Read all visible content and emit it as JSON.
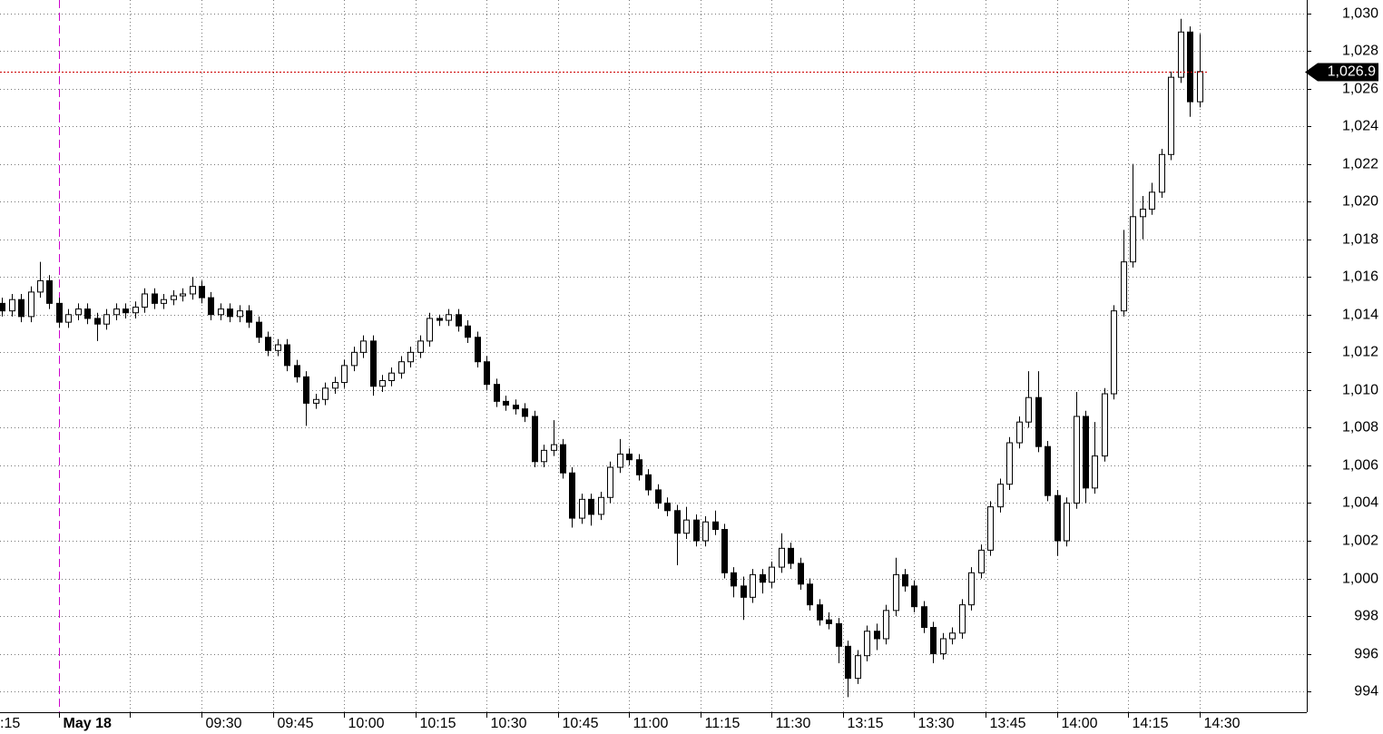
{
  "chart_data": {
    "type": "candlestick",
    "up_color": "#ffffff",
    "down_color": "#000000",
    "xlim": [
      -0.2,
      137.3
    ],
    "ylim": [
      992.9,
      1030.7
    ],
    "grid": true,
    "xticks": [
      {
        "value": -1.5,
        "label": ":15"
      },
      {
        "value": 6,
        "label": "May 18",
        "color": "#cc00cc",
        "bold": true
      },
      {
        "value": 13.5,
        "label": null
      },
      {
        "value": 21,
        "label": "09:30"
      },
      {
        "value": 28.5,
        "label": "09:45"
      },
      {
        "value": 36,
        "label": "10:00"
      },
      {
        "value": 43.5,
        "label": "10:15"
      },
      {
        "value": 51,
        "label": "10:30"
      },
      {
        "value": 58.5,
        "label": "10:45"
      },
      {
        "value": 66,
        "label": "11:00"
      },
      {
        "value": 73.5,
        "label": "11:15"
      },
      {
        "value": 81,
        "label": "11:30"
      },
      {
        "value": 88.5,
        "label": "13:15"
      },
      {
        "value": 96,
        "label": "13:30"
      },
      {
        "value": 103.5,
        "label": "13:45"
      },
      {
        "value": 111,
        "label": "14:00"
      },
      {
        "value": 118.5,
        "label": "14:15"
      },
      {
        "value": 126,
        "label": "14:30"
      }
    ],
    "yticks": [
      994,
      996,
      998,
      {
        "value": 1000,
        "label": "1,000"
      },
      {
        "value": 1002,
        "label": "1,002"
      },
      {
        "value": 1004,
        "label": "1,004"
      },
      {
        "value": 1006,
        "label": "1,006"
      },
      {
        "value": 1008,
        "label": "1,008"
      },
      {
        "value": 1010,
        "label": "1,010"
      },
      {
        "value": 1012,
        "label": "1,012"
      },
      {
        "value": 1014,
        "label": "1,014"
      },
      {
        "value": 1016,
        "label": "1,016"
      },
      {
        "value": 1018,
        "label": "1,018"
      },
      {
        "value": 1020,
        "label": "1,020"
      },
      {
        "value": 1022,
        "label": "1,022"
      },
      {
        "value": 1024,
        "label": "1,024"
      },
      {
        "value": 1026,
        "label": "1,026"
      },
      {
        "value": 1028,
        "label": "1,028"
      },
      {
        "value": 1030,
        "label": "1,030"
      }
    ],
    "last": {
      "value": 1026.9,
      "label": "1,026.9",
      "color": "#cc0000"
    },
    "open": [
      1014.6,
      1014.2,
      1014.8,
      1013.9,
      1015.2,
      1015.8,
      1014.6,
      1013.6,
      1014.0,
      1014.3,
      1013.8,
      1013.5,
      1014.0,
      1014.3,
      1014.1,
      1014.4,
      1015.1,
      1014.6,
      1014.8,
      1015.0,
      1015.1,
      1015.5,
      1014.9,
      1014.0,
      1014.3,
      1013.9,
      1014.2,
      1013.6,
      1012.8,
      1012.1,
      1012.4,
      1011.3,
      1010.7,
      1009.3,
      1009.5,
      1010.1,
      1010.4,
      1011.3,
      1012.0,
      1012.6,
      1010.2,
      1010.5,
      1010.9,
      1011.5,
      1012.0,
      1012.6,
      1013.8,
      1013.7,
      1014.0,
      1013.4,
      1012.8,
      1011.5,
      1010.3,
      1009.4,
      1009.2,
      1009.0,
      1008.6,
      1006.2,
      1006.8,
      1007.1,
      1005.6,
      1003.2,
      1004.2,
      1003.4,
      1004.3,
      1005.9,
      1006.6,
      1006.3,
      1005.5,
      1004.7,
      1004.0,
      1003.6,
      1002.4,
      1003.1,
      1002.0,
      1003.0,
      1002.6,
      1000.3,
      999.6,
      999.0,
      1000.2,
      999.8,
      1000.6,
      1001.6,
      1000.8,
      999.7,
      998.6,
      997.8,
      997.6,
      996.4,
      994.7,
      995.9,
      997.2,
      996.8,
      998.3,
      1000.2,
      999.6,
      998.5,
      997.4,
      996.0,
      996.8,
      997.1,
      998.6,
      1000.3,
      1001.5,
      1003.8,
      1005.0,
      1007.2,
      1008.3,
      1009.6,
      1007.0,
      1004.4,
      1002.0,
      1004.0,
      1008.6,
      1004.8,
      1006.5,
      1009.8,
      1014.2,
      1016.8,
      1019.2,
      1019.6,
      1020.5,
      1022.5,
      1026.6,
      1029.0,
      1025.3
    ],
    "high": [
      1014.9,
      1015.1,
      1015.1,
      1015.5,
      1016.8,
      1016.1,
      1014.9,
      1014.3,
      1014.6,
      1014.6,
      1014.1,
      1014.3,
      1014.6,
      1014.6,
      1014.7,
      1015.4,
      1015.4,
      1015.1,
      1015.3,
      1015.4,
      1016.0,
      1015.8,
      1015.2,
      1014.6,
      1014.6,
      1014.5,
      1014.5,
      1013.9,
      1013.1,
      1012.7,
      1012.7,
      1011.6,
      1011.0,
      1009.8,
      1010.4,
      1010.7,
      1011.6,
      1012.3,
      1012.9,
      1012.9,
      1010.8,
      1011.2,
      1011.8,
      1012.3,
      1012.9,
      1014.1,
      1014.0,
      1014.3,
      1014.3,
      1013.7,
      1013.1,
      1011.8,
      1010.6,
      1009.7,
      1009.5,
      1009.3,
      1008.9,
      1007.1,
      1008.4,
      1007.4,
      1005.9,
      1004.5,
      1004.5,
      1004.6,
      1006.2,
      1007.4,
      1006.9,
      1006.6,
      1005.8,
      1005.0,
      1004.3,
      1003.9,
      1003.8,
      1003.4,
      1003.3,
      1003.6,
      1002.9,
      1000.6,
      1000.1,
      1000.5,
      1000.5,
      1000.9,
      1002.4,
      1001.9,
      1001.1,
      1000.0,
      998.9,
      998.2,
      997.9,
      996.7,
      996.2,
      997.5,
      997.6,
      998.6,
      1001.1,
      1000.5,
      999.9,
      998.8,
      997.7,
      997.1,
      997.4,
      998.9,
      1000.6,
      1001.8,
      1004.1,
      1005.3,
      1007.5,
      1008.6,
      1011.0,
      1011.0,
      1007.3,
      1004.7,
      1004.3,
      1009.9,
      1008.9,
      1008.3,
      1010.1,
      1014.5,
      1018.5,
      1022.0,
      1020.3,
      1021.0,
      1022.8,
      1026.9,
      1029.7,
      1029.3,
      1028.9
    ],
    "low": [
      1013.9,
      1013.9,
      1013.6,
      1013.6,
      1014.9,
      1014.3,
      1013.3,
      1013.3,
      1013.7,
      1013.5,
      1012.6,
      1013.2,
      1013.7,
      1013.8,
      1013.8,
      1014.1,
      1014.3,
      1014.3,
      1014.5,
      1014.7,
      1014.8,
      1014.6,
      1013.7,
      1013.7,
      1013.6,
      1013.6,
      1013.3,
      1012.5,
      1011.8,
      1011.8,
      1011.0,
      1010.4,
      1008.1,
      1009.0,
      1009.2,
      1009.8,
      1010.1,
      1011.0,
      1011.7,
      1009.7,
      1009.9,
      1010.2,
      1010.6,
      1011.2,
      1011.7,
      1012.3,
      1013.4,
      1013.4,
      1013.1,
      1012.5,
      1011.2,
      1010.0,
      1009.1,
      1008.9,
      1008.7,
      1008.3,
      1005.9,
      1005.9,
      1006.5,
      1005.3,
      1002.7,
      1002.9,
      1002.8,
      1003.1,
      1004.0,
      1005.6,
      1006.0,
      1005.2,
      1004.4,
      1003.7,
      1003.3,
      1000.7,
      1002.1,
      1001.7,
      1001.7,
      1002.3,
      1000.0,
      999.0,
      997.8,
      998.7,
      999.2,
      999.5,
      1000.3,
      1000.5,
      999.4,
      998.3,
      997.5,
      997.3,
      995.5,
      993.7,
      994.4,
      995.6,
      996.2,
      996.5,
      998.0,
      999.3,
      998.2,
      997.1,
      995.5,
      995.7,
      996.5,
      996.8,
      998.3,
      1000.0,
      1001.2,
      1003.5,
      1004.7,
      1006.9,
      1008.0,
      1006.7,
      1004.1,
      1001.2,
      1001.7,
      1003.7,
      1004.0,
      1004.5,
      1006.2,
      1009.5,
      1013.9,
      1016.5,
      1018.0,
      1019.3,
      1020.2,
      1022.2,
      1026.3,
      1024.5,
      1025.0
    ],
    "close": [
      1014.2,
      1014.8,
      1013.9,
      1015.2,
      1015.8,
      1014.6,
      1013.6,
      1014.0,
      1014.3,
      1013.8,
      1013.5,
      1014.0,
      1014.3,
      1014.1,
      1014.4,
      1015.1,
      1014.6,
      1014.8,
      1015.0,
      1015.1,
      1015.5,
      1014.9,
      1014.0,
      1014.3,
      1013.9,
      1014.2,
      1013.6,
      1012.8,
      1012.1,
      1012.4,
      1011.3,
      1010.7,
      1009.3,
      1009.5,
      1010.1,
      1010.4,
      1011.3,
      1012.0,
      1012.6,
      1010.2,
      1010.5,
      1010.9,
      1011.5,
      1012.0,
      1012.6,
      1013.8,
      1013.7,
      1014.0,
      1013.4,
      1012.8,
      1011.5,
      1010.3,
      1009.4,
      1009.2,
      1009.0,
      1008.6,
      1006.2,
      1006.8,
      1007.1,
      1005.6,
      1003.2,
      1004.2,
      1003.4,
      1004.3,
      1005.9,
      1006.6,
      1006.3,
      1005.5,
      1004.7,
      1004.0,
      1003.6,
      1002.4,
      1003.1,
      1002.0,
      1003.0,
      1002.6,
      1000.3,
      999.6,
      999.0,
      1000.2,
      999.8,
      1000.6,
      1001.6,
      1000.8,
      999.7,
      998.6,
      997.8,
      997.6,
      996.4,
      994.7,
      995.9,
      997.2,
      996.8,
      998.3,
      1000.2,
      999.6,
      998.5,
      997.4,
      996.0,
      996.8,
      997.1,
      998.6,
      1000.3,
      1001.5,
      1003.8,
      1005.0,
      1007.2,
      1008.3,
      1009.6,
      1007.0,
      1004.4,
      1002.0,
      1004.0,
      1008.6,
      1004.8,
      1006.5,
      1009.8,
      1014.2,
      1016.8,
      1019.2,
      1019.6,
      1020.5,
      1022.5,
      1026.6,
      1029.0,
      1025.3,
      1026.9
    ]
  }
}
